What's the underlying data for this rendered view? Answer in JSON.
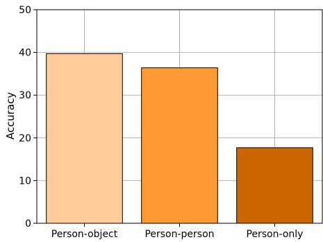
{
  "chart_data": {
    "type": "bar",
    "title": "",
    "xlabel": "",
    "ylabel": "Accuracy",
    "categories": [
      "Person-object",
      "Person-person",
      "Person-only"
    ],
    "values": [
      39.7,
      36.4,
      17.7
    ],
    "bar_colors": [
      "#FFCC99",
      "#FF9933",
      "#CC6600"
    ],
    "edge_color": "#000000",
    "ylim": [
      0,
      50
    ],
    "yticks": [
      0,
      10,
      20,
      30,
      40,
      50
    ],
    "grid": true,
    "grid_color": "#b0b0b0"
  }
}
